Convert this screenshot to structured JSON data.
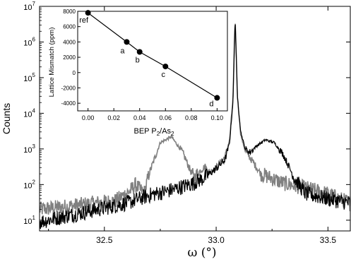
{
  "chart_data": [
    {
      "type": "line",
      "xlabel": "ω (°)",
      "ylabel": "Counts",
      "yscale": "log",
      "xlim": [
        32.21,
        33.6
      ],
      "ylim": [
        5,
        10000000
      ],
      "x_ticks": [
        32.5,
        33.0,
        33.5
      ],
      "x_tick_labels": [
        "32.5",
        "33.0",
        "33.5"
      ],
      "y_tick_labels": [
        {
          "base": "10",
          "exp": "1",
          "value": 10
        },
        {
          "base": "10",
          "exp": "2",
          "value": 100
        },
        {
          "base": "10",
          "exp": "3",
          "value": 1000
        },
        {
          "base": "10",
          "exp": "4",
          "value": 10000
        },
        {
          "base": "10",
          "exp": "5",
          "value": 100000
        },
        {
          "base": "10",
          "exp": "6",
          "value": 1000000
        },
        {
          "base": "10",
          "exp": "7",
          "value": 10000000
        }
      ],
      "series": [
        {
          "color": "#000000",
          "x": [
            32.21,
            32.3,
            32.4,
            32.5,
            32.6,
            32.7,
            32.8,
            32.9,
            32.95,
            33.0,
            33.04,
            33.06,
            33.075,
            33.085,
            33.095,
            33.11,
            33.13,
            33.15,
            33.18,
            33.22,
            33.26,
            33.3,
            33.35,
            33.4,
            33.5,
            33.6
          ],
          "y": [
            9,
            12,
            16,
            22,
            30,
            50,
            70,
            110,
            160,
            280,
            500,
            1500,
            20000,
            4800000,
            30000,
            3000,
            1000,
            800,
            1200,
            1800,
            1500,
            700,
            150,
            55,
            40,
            30
          ]
        },
        {
          "color": "#808080",
          "x": [
            32.21,
            32.35,
            32.55,
            32.62,
            32.64,
            32.66,
            32.68,
            32.7,
            32.75,
            32.8,
            32.85,
            32.9,
            32.93,
            32.95,
            32.97,
            33.0,
            33.04,
            33.06,
            33.075,
            33.085,
            33.095,
            33.11,
            33.13,
            33.2,
            33.3,
            33.4,
            33.5,
            33.6
          ],
          "y": [
            20,
            25,
            35,
            70,
            100,
            70,
            60,
            200,
            1500,
            2200,
            800,
            150,
            250,
            320,
            220,
            300,
            600,
            1800,
            25000,
            5000000,
            30000,
            2500,
            900,
            200,
            110,
            80,
            55,
            30
          ]
        }
      ]
    },
    {
      "type": "scatter",
      "xlabel_main": "BEP P",
      "xlabel_sub1": "2",
      "xlabel_mid": "/As",
      "xlabel_sub2": "2",
      "ylabel": "Lattice Mismatch (ppm)",
      "xlim": [
        -0.008,
        0.108
      ],
      "ylim": [
        -5000,
        8000
      ],
      "x_ticks": [
        "0.00",
        "0.02",
        "0.04",
        "0.06",
        "0.08",
        "0.10"
      ],
      "y_ticks": [
        "8000",
        "6000",
        "4000",
        "2000",
        "0",
        "-2000",
        "-4000"
      ],
      "points": [
        {
          "x": 0.0,
          "y": 7800,
          "label": "ref"
        },
        {
          "x": 0.03,
          "y": 4000,
          "label": "a"
        },
        {
          "x": 0.04,
          "y": 2700,
          "label": "b"
        },
        {
          "x": 0.06,
          "y": 800,
          "label": "c"
        },
        {
          "x": 0.1,
          "y": -3300,
          "label": "d"
        }
      ]
    }
  ]
}
